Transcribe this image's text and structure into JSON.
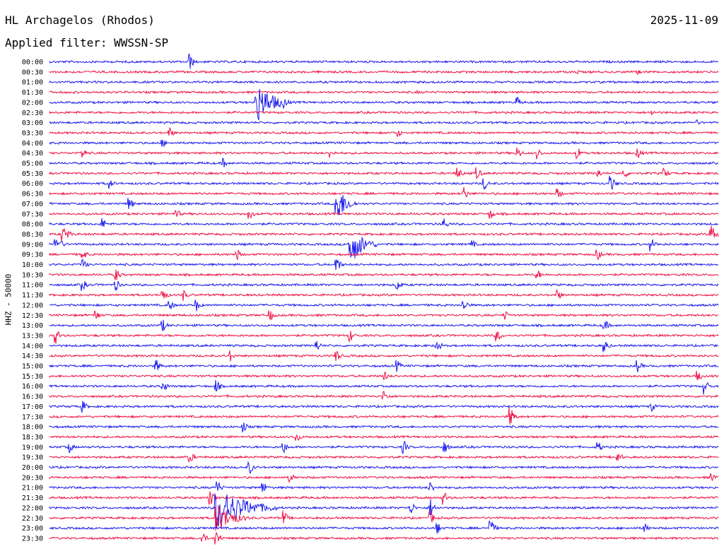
{
  "header": {
    "station": "HL Archagelos (Rhodos)",
    "date": "2025-11-09",
    "filter": "Applied filter: WWSSN-SP",
    "channel_label": "HHZ - 50000"
  },
  "colors": {
    "blue": "#1a1aee",
    "red": "#ee1144"
  },
  "chart_data": {
    "type": "line",
    "title": "HL Archagelos (Rhodos)",
    "subtitle": "Applied filter: WWSSN-SP",
    "ylabel": "HHZ - 50000",
    "xlabel": "",
    "trace_interval_minutes": 30,
    "row_labels": [
      "00:00",
      "00:30",
      "01:00",
      "01:30",
      "02:00",
      "02:30",
      "03:00",
      "03:30",
      "04:00",
      "04:30",
      "05:00",
      "05:30",
      "06:00",
      "06:30",
      "07:00",
      "07:30",
      "08:00",
      "08:30",
      "09:00",
      "09:30",
      "10:00",
      "10:30",
      "11:00",
      "11:30",
      "12:00",
      "12:30",
      "13:00",
      "13:30",
      "14:00",
      "14:30",
      "15:00",
      "15:30",
      "16:00",
      "16:30",
      "17:00",
      "17:30",
      "18:00",
      "18:30",
      "19:00",
      "19:30",
      "20:00",
      "20:30",
      "21:00",
      "21:30",
      "22:00",
      "22:30",
      "23:00",
      "23:30"
    ],
    "series_colors": [
      "blue",
      "red"
    ],
    "grid": false,
    "events": [
      {
        "row": 0,
        "pos": 0.21,
        "amp": 12
      },
      {
        "row": 1,
        "pos": 0.79,
        "amp": 4
      },
      {
        "row": 1,
        "pos": 0.88,
        "amp": 4
      },
      {
        "row": 3,
        "pos": 0.55,
        "amp": 3
      },
      {
        "row": 4,
        "pos": 0.31,
        "amp": 30,
        "dur": 0.05
      },
      {
        "row": 4,
        "pos": 0.35,
        "amp": 9
      },
      {
        "row": 4,
        "pos": 0.7,
        "amp": 8
      },
      {
        "row": 5,
        "pos": 0.9,
        "amp": 5
      },
      {
        "row": 6,
        "pos": 0.97,
        "amp": 4
      },
      {
        "row": 7,
        "pos": 0.18,
        "amp": 8
      },
      {
        "row": 7,
        "pos": 0.52,
        "amp": 8
      },
      {
        "row": 8,
        "pos": 0.17,
        "amp": 6
      },
      {
        "row": 9,
        "pos": 0.05,
        "amp": 8
      },
      {
        "row": 9,
        "pos": 0.42,
        "amp": 8
      },
      {
        "row": 9,
        "pos": 0.7,
        "amp": 10
      },
      {
        "row": 9,
        "pos": 0.73,
        "amp": 9
      },
      {
        "row": 9,
        "pos": 0.79,
        "amp": 9
      },
      {
        "row": 9,
        "pos": 0.88,
        "amp": 9
      },
      {
        "row": 10,
        "pos": 0.26,
        "amp": 8
      },
      {
        "row": 11,
        "pos": 0.61,
        "amp": 12
      },
      {
        "row": 11,
        "pos": 0.64,
        "amp": 9
      },
      {
        "row": 11,
        "pos": 0.82,
        "amp": 8
      },
      {
        "row": 11,
        "pos": 0.86,
        "amp": 8
      },
      {
        "row": 11,
        "pos": 0.92,
        "amp": 8
      },
      {
        "row": 12,
        "pos": 0.09,
        "amp": 8
      },
      {
        "row": 12,
        "pos": 0.65,
        "amp": 10
      },
      {
        "row": 12,
        "pos": 0.84,
        "amp": 12
      },
      {
        "row": 13,
        "pos": 0.62,
        "amp": 10
      },
      {
        "row": 13,
        "pos": 0.76,
        "amp": 10
      },
      {
        "row": 14,
        "pos": 0.12,
        "amp": 9
      },
      {
        "row": 14,
        "pos": 0.43,
        "amp": 28,
        "dur": 0.03
      },
      {
        "row": 15,
        "pos": 0.19,
        "amp": 8
      },
      {
        "row": 15,
        "pos": 0.3,
        "amp": 8
      },
      {
        "row": 15,
        "pos": 0.66,
        "amp": 8
      },
      {
        "row": 16,
        "pos": 0.08,
        "amp": 9
      },
      {
        "row": 16,
        "pos": 0.59,
        "amp": 10
      },
      {
        "row": 17,
        "pos": 0.02,
        "amp": 12,
        "dur": 0.02
      },
      {
        "row": 17,
        "pos": 0.99,
        "amp": 14,
        "dur": 0.02
      },
      {
        "row": 18,
        "pos": 0.01,
        "amp": 12,
        "dur": 0.02
      },
      {
        "row": 18,
        "pos": 0.45,
        "amp": 30,
        "dur": 0.04
      },
      {
        "row": 18,
        "pos": 0.63,
        "amp": 10
      },
      {
        "row": 18,
        "pos": 0.9,
        "amp": 10
      },
      {
        "row": 19,
        "pos": 0.05,
        "amp": 9
      },
      {
        "row": 19,
        "pos": 0.28,
        "amp": 10
      },
      {
        "row": 19,
        "pos": 0.82,
        "amp": 8
      },
      {
        "row": 20,
        "pos": 0.05,
        "amp": 9
      },
      {
        "row": 20,
        "pos": 0.43,
        "amp": 12
      },
      {
        "row": 21,
        "pos": 0.1,
        "amp": 10
      },
      {
        "row": 21,
        "pos": 0.73,
        "amp": 8
      },
      {
        "row": 22,
        "pos": 0.05,
        "amp": 9
      },
      {
        "row": 22,
        "pos": 0.1,
        "amp": 9
      },
      {
        "row": 22,
        "pos": 0.52,
        "amp": 9
      },
      {
        "row": 23,
        "pos": 0.17,
        "amp": 10
      },
      {
        "row": 23,
        "pos": 0.2,
        "amp": 9
      },
      {
        "row": 23,
        "pos": 0.76,
        "amp": 8
      },
      {
        "row": 24,
        "pos": 0.18,
        "amp": 9
      },
      {
        "row": 24,
        "pos": 0.22,
        "amp": 9
      },
      {
        "row": 24,
        "pos": 0.62,
        "amp": 10
      },
      {
        "row": 25,
        "pos": 0.07,
        "amp": 8
      },
      {
        "row": 25,
        "pos": 0.33,
        "amp": 9
      },
      {
        "row": 25,
        "pos": 0.68,
        "amp": 9
      },
      {
        "row": 26,
        "pos": 0.17,
        "amp": 9
      },
      {
        "row": 26,
        "pos": 0.83,
        "amp": 10
      },
      {
        "row": 27,
        "pos": 0.01,
        "amp": 12
      },
      {
        "row": 27,
        "pos": 0.45,
        "amp": 9
      },
      {
        "row": 27,
        "pos": 0.67,
        "amp": 9
      },
      {
        "row": 28,
        "pos": 0.4,
        "amp": 9
      },
      {
        "row": 28,
        "pos": 0.58,
        "amp": 10
      },
      {
        "row": 28,
        "pos": 0.83,
        "amp": 10
      },
      {
        "row": 29,
        "pos": 0.27,
        "amp": 9
      },
      {
        "row": 29,
        "pos": 0.43,
        "amp": 9
      },
      {
        "row": 30,
        "pos": 0.16,
        "amp": 10
      },
      {
        "row": 30,
        "pos": 0.52,
        "amp": 9
      },
      {
        "row": 30,
        "pos": 0.88,
        "amp": 9
      },
      {
        "row": 31,
        "pos": 0.5,
        "amp": 9
      },
      {
        "row": 31,
        "pos": 0.97,
        "amp": 8
      },
      {
        "row": 32,
        "pos": 0.17,
        "amp": 10
      },
      {
        "row": 32,
        "pos": 0.25,
        "amp": 10
      },
      {
        "row": 32,
        "pos": 0.98,
        "amp": 12
      },
      {
        "row": 33,
        "pos": 0.5,
        "amp": 10
      },
      {
        "row": 34,
        "pos": 0.05,
        "amp": 9
      },
      {
        "row": 34,
        "pos": 0.9,
        "amp": 8
      },
      {
        "row": 35,
        "pos": 0.69,
        "amp": 14
      },
      {
        "row": 36,
        "pos": 0.29,
        "amp": 9
      },
      {
        "row": 37,
        "pos": 0.37,
        "amp": 8
      },
      {
        "row": 38,
        "pos": 0.03,
        "amp": 9
      },
      {
        "row": 38,
        "pos": 0.35,
        "amp": 10
      },
      {
        "row": 38,
        "pos": 0.53,
        "amp": 10
      },
      {
        "row": 38,
        "pos": 0.59,
        "amp": 12
      },
      {
        "row": 38,
        "pos": 0.82,
        "amp": 10
      },
      {
        "row": 39,
        "pos": 0.21,
        "amp": 10
      },
      {
        "row": 39,
        "pos": 0.85,
        "amp": 10
      },
      {
        "row": 40,
        "pos": 0.3,
        "amp": 9
      },
      {
        "row": 41,
        "pos": 0.36,
        "amp": 8
      },
      {
        "row": 41,
        "pos": 0.99,
        "amp": 8
      },
      {
        "row": 42,
        "pos": 0.25,
        "amp": 14
      },
      {
        "row": 42,
        "pos": 0.32,
        "amp": 9
      },
      {
        "row": 42,
        "pos": 0.57,
        "amp": 9
      },
      {
        "row": 43,
        "pos": 0.24,
        "amp": 14
      },
      {
        "row": 43,
        "pos": 0.59,
        "amp": 10
      },
      {
        "row": 44,
        "pos": 0.25,
        "amp": 32,
        "dur": 0.09
      },
      {
        "row": 44,
        "pos": 0.54,
        "amp": 12
      },
      {
        "row": 44,
        "pos": 0.57,
        "amp": 14
      },
      {
        "row": 45,
        "pos": 0.25,
        "amp": 22,
        "dur": 0.05
      },
      {
        "row": 45,
        "pos": 0.35,
        "amp": 12
      },
      {
        "row": 45,
        "pos": 0.57,
        "amp": 10
      },
      {
        "row": 46,
        "pos": 0.58,
        "amp": 10
      },
      {
        "row": 46,
        "pos": 0.66,
        "amp": 14
      },
      {
        "row": 46,
        "pos": 0.89,
        "amp": 8
      },
      {
        "row": 47,
        "pos": 0.23,
        "amp": 8
      },
      {
        "row": 47,
        "pos": 0.25,
        "amp": 14
      }
    ]
  }
}
